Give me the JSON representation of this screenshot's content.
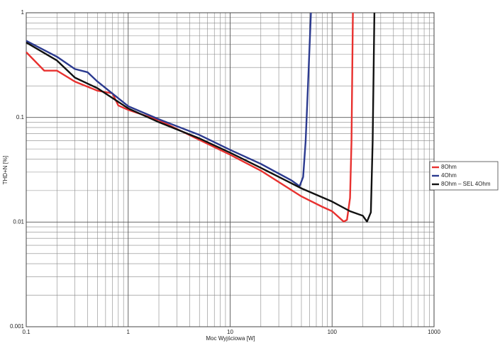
{
  "chart_data": {
    "type": "line",
    "x_label": "Moc Wyjściowa [W]",
    "y_label": "THD+N [%]",
    "xlog": true,
    "ylog": true,
    "grid": true,
    "minor_grid": true,
    "legend": "right",
    "xlim": [
      0.1,
      1000
    ],
    "xticks": [
      0.1,
      1,
      10,
      100,
      1000
    ],
    "ylim": [
      0.001,
      1
    ],
    "yticks": [
      0.001,
      0.01,
      0.1,
      1
    ],
    "series": [
      {
        "name": "8Ohm",
        "color": "#e8312f",
        "x": [
          0.1,
          0.15,
          0.2,
          0.3,
          0.5,
          0.7,
          0.8,
          1,
          2,
          5,
          10,
          20,
          50,
          80,
          100,
          130,
          140,
          150,
          155,
          160
        ],
        "values": [
          0.42,
          0.28,
          0.28,
          0.22,
          0.18,
          0.17,
          0.13,
          0.118,
          0.094,
          0.061,
          0.044,
          0.031,
          0.0176,
          0.014,
          0.0127,
          0.0101,
          0.0105,
          0.017,
          0.059,
          1
        ]
      },
      {
        "name": "4Ohm",
        "color": "#2b3a8f",
        "x": [
          0.1,
          0.2,
          0.3,
          0.4,
          0.5,
          1,
          2,
          5,
          10,
          20,
          40,
          48,
          52,
          55,
          58,
          62
        ],
        "values": [
          0.54,
          0.38,
          0.29,
          0.27,
          0.22,
          0.128,
          0.096,
          0.068,
          0.049,
          0.036,
          0.025,
          0.022,
          0.027,
          0.059,
          0.2,
          1
        ]
      },
      {
        "name": "8Ohm – SEL 4Ohm",
        "color": "#111111",
        "x": [
          0.1,
          0.2,
          0.3,
          0.5,
          1,
          2,
          5,
          10,
          20,
          50,
          100,
          150,
          200,
          220,
          240,
          250,
          260
        ],
        "values": [
          0.52,
          0.35,
          0.24,
          0.19,
          0.122,
          0.09,
          0.063,
          0.046,
          0.033,
          0.021,
          0.0157,
          0.0127,
          0.0115,
          0.0101,
          0.0124,
          0.059,
          1
        ]
      }
    ]
  }
}
